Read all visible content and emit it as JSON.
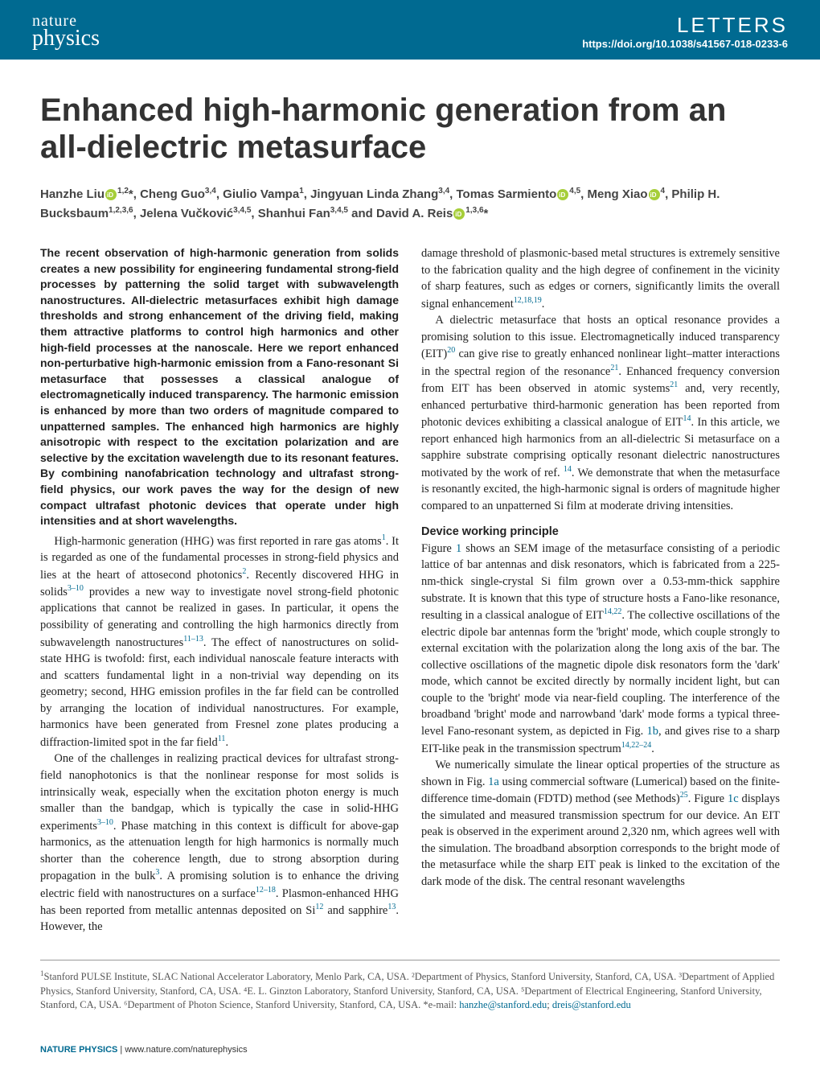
{
  "header": {
    "journal_nature": "nature",
    "journal_physics": "physics",
    "section": "LETTERS",
    "doi": "https://doi.org/10.1038/s41567-018-0233-6"
  },
  "title": "Enhanced high-harmonic generation from an all-dielectric metasurface",
  "authors_line1": "Hanzhe Liu",
  "authors_sup1": "1,2",
  "authors_line2": "*, Cheng Guo",
  "authors_sup2": "3,4",
  "authors_line3": ", Giulio Vampa",
  "authors_sup3": "1",
  "authors_line4": ", Jingyuan Linda Zhang",
  "authors_sup4": "3,4",
  "authors_line5": ", Tomas Sarmiento",
  "authors_sup5": "4,5",
  "authors_line6": ", Meng Xiao",
  "authors_sup6": "4",
  "authors_line7": ", Philip H. Bucksbaum",
  "authors_sup7": "1,2,3,6",
  "authors_line8": ", Jelena Vučković",
  "authors_sup8": "3,4,5",
  "authors_line9": ", Shanhui Fan",
  "authors_sup9": "3,4,5",
  "authors_line10": " and David A. Reis",
  "authors_sup10": "1,3,6",
  "authors_end": "*",
  "abstract": "The recent observation of high-harmonic generation from solids creates a new possibility for engineering fundamental strong-field processes by patterning the solid target with subwavelength nanostructures. All-dielectric metasurfaces exhibit high damage thresholds and strong enhancement of the driving field, making them attractive platforms to control high harmonics and other high-field processes at the nanoscale. Here we report enhanced non-perturbative high-harmonic emission from a Fano-resonant Si metasurface that possesses a classical analogue of electromagnetically induced transparency. The harmonic emission is enhanced by more than two orders of magnitude compared to unpatterned samples. The enhanced high harmonics are highly anisotropic with respect to the excitation polarization and are selective by the excitation wavelength due to its resonant features. By combining nanofabrication technology and ultrafast strong-field physics, our work paves the way for the design of new compact ultrafast photonic devices that operate under high intensities and at short wavelengths.",
  "col1_p1a": "High-harmonic generation (HHG) was first reported in rare gas atoms",
  "col1_p1_ref1": "1",
  "col1_p1b": ". It is regarded as one of the fundamental processes in strong-field physics and lies at the heart of attosecond photonics",
  "col1_p1_ref2": "2",
  "col1_p1c": ". Recently discovered HHG in solids",
  "col1_p1_ref3": "3–10",
  "col1_p1d": " provides a new way to investigate novel strong-field photonic applications that cannot be realized in gases. In particular, it opens the possibility of generating and controlling the high harmonics directly from subwavelength nanostructures",
  "col1_p1_ref4": "11–13",
  "col1_p1e": ". The effect of nanostructures on solid-state HHG is twofold: first, each individual nanoscale feature interacts with and scatters fundamental light in a non-trivial way depending on its geometry; second, HHG emission profiles in the far field can be controlled by arranging the location of individual nanostructures. For example, harmonics have been generated from Fresnel zone plates producing a diffraction-limited spot in the far field",
  "col1_p1_ref5": "11",
  "col1_p1f": ".",
  "col1_p2a": "One of the challenges in realizing practical devices for ultrafast strong-field nanophotonics is that the nonlinear response for most solids is intrinsically weak, especially when the excitation photon energy is much smaller than the bandgap, which is typically the case in solid-HHG experiments",
  "col1_p2_ref1": "3–10",
  "col1_p2b": ". Phase matching in this context is difficult for above-gap harmonics, as the attenuation length for high harmonics is normally much shorter than the coherence length, due to strong absorption during propagation in the bulk",
  "col1_p2_ref2": "3",
  "col1_p2c": ". A promising solution is to enhance the driving electric field with nanostructures on a surface",
  "col1_p2_ref3": "12–18",
  "col1_p2d": ". Plasmon-enhanced HHG has been reported from metallic antennas deposited on Si",
  "col1_p2_ref4": "12",
  "col1_p2e": " and sapphire",
  "col1_p2_ref5": "13",
  "col1_p2f": ". However, the",
  "col2_p1a": "damage threshold of plasmonic-based metal structures is extremely sensitive to the fabrication quality and the high degree of confinement in the vicinity of sharp features, such as edges or corners, significantly limits the overall signal enhancement",
  "col2_p1_ref1": "12,18,19",
  "col2_p1b": ".",
  "col2_p2a": "A dielectric metasurface that hosts an optical resonance provides a promising solution to this issue. Electromagnetically induced transparency (EIT)",
  "col2_p2_ref1": "20",
  "col2_p2b": " can give rise to greatly enhanced nonlinear light–matter interactions in the spectral region of the resonance",
  "col2_p2_ref2": "21",
  "col2_p2c": ". Enhanced frequency conversion from EIT has been observed in atomic systems",
  "col2_p2_ref3": "21",
  "col2_p2d": " and, very recently, enhanced perturbative third-harmonic generation has been reported from photonic devices exhibiting a classical analogue of EIT",
  "col2_p2_ref4": "14",
  "col2_p2e": ". In this article, we report enhanced high harmonics from an all-dielectric Si metasurface on a sapphire substrate comprising optically resonant dielectric nanostructures motivated by the work of ref. ",
  "col2_p2_ref5": "14",
  "col2_p2f": ". We demonstrate that when the metasurface is resonantly excited, the high-harmonic signal is orders of magnitude higher compared to an unpatterned Si film at moderate driving intensities.",
  "section_heading": "Device working principle",
  "col2_p3a": "Figure ",
  "col2_p3_ref1": "1",
  "col2_p3b": " shows an SEM image of the metasurface consisting of a periodic lattice of bar antennas and disk resonators, which is fabricated from a 225-nm-thick single-crystal Si film grown over a 0.53-mm-thick sapphire substrate. It is known that this type of structure hosts a Fano-like resonance, resulting in a classical analogue of EIT",
  "col2_p3_ref2": "14,22",
  "col2_p3c": ". The collective oscillations of the electric dipole bar antennas form the 'bright' mode, which couple strongly to external excitation with the polarization along the long axis of the bar. The collective oscillations of the magnetic dipole disk resonators form the 'dark' mode, which cannot be excited directly by normally incident light, but can couple to the 'bright' mode via near-field coupling. The interference of the broadband 'bright' mode and narrowband 'dark' mode forms a typical three-level Fano-resonant system, as depicted in Fig. ",
  "col2_p3_ref3": "1b",
  "col2_p3d": ", and gives rise to a sharp EIT-like peak in the transmission spectrum",
  "col2_p3_ref4": "14,22–24",
  "col2_p3e": ".",
  "col2_p4a": "We numerically simulate the linear optical properties of the structure as shown in Fig. ",
  "col2_p4_ref1": "1a",
  "col2_p4b": " using commercial software (Lumerical) based on the finite-difference time-domain (FDTD) method (see Methods)",
  "col2_p4_ref2": "25",
  "col2_p4c": ". Figure ",
  "col2_p4_ref3": "1c",
  "col2_p4d": " displays the simulated and measured transmission spectrum for our device. An EIT peak is observed in the experiment around 2,320 nm, which agrees well with the simulation. The broadband absorption corresponds to the bright mode of the metasurface while the sharp EIT peak is linked to the excitation of the dark mode of the disk. The central resonant wavelengths",
  "affiliations": "Stanford PULSE Institute, SLAC National Accelerator Laboratory, Menlo Park, CA, USA. ²Department of Physics, Stanford University, Stanford, CA, USA. ³Department of Applied Physics, Stanford University, Stanford, CA, USA. ⁴E. L. Ginzton Laboratory, Stanford University, Stanford, CA, USA. ⁵Department of Electrical Engineering, Stanford University, Stanford, CA, USA. ⁶Department of Photon Science, Stanford University, Stanford, CA, USA. *e-mail: ",
  "aff_sup1": "1",
  "email1": "hanzhe@stanford.edu",
  "email_sep": "; ",
  "email2": "dreis@stanford.edu",
  "footer_bold": "NATURE PHYSICS",
  "footer_sep": " | ",
  "footer_url": "www.nature.com/naturephysics"
}
